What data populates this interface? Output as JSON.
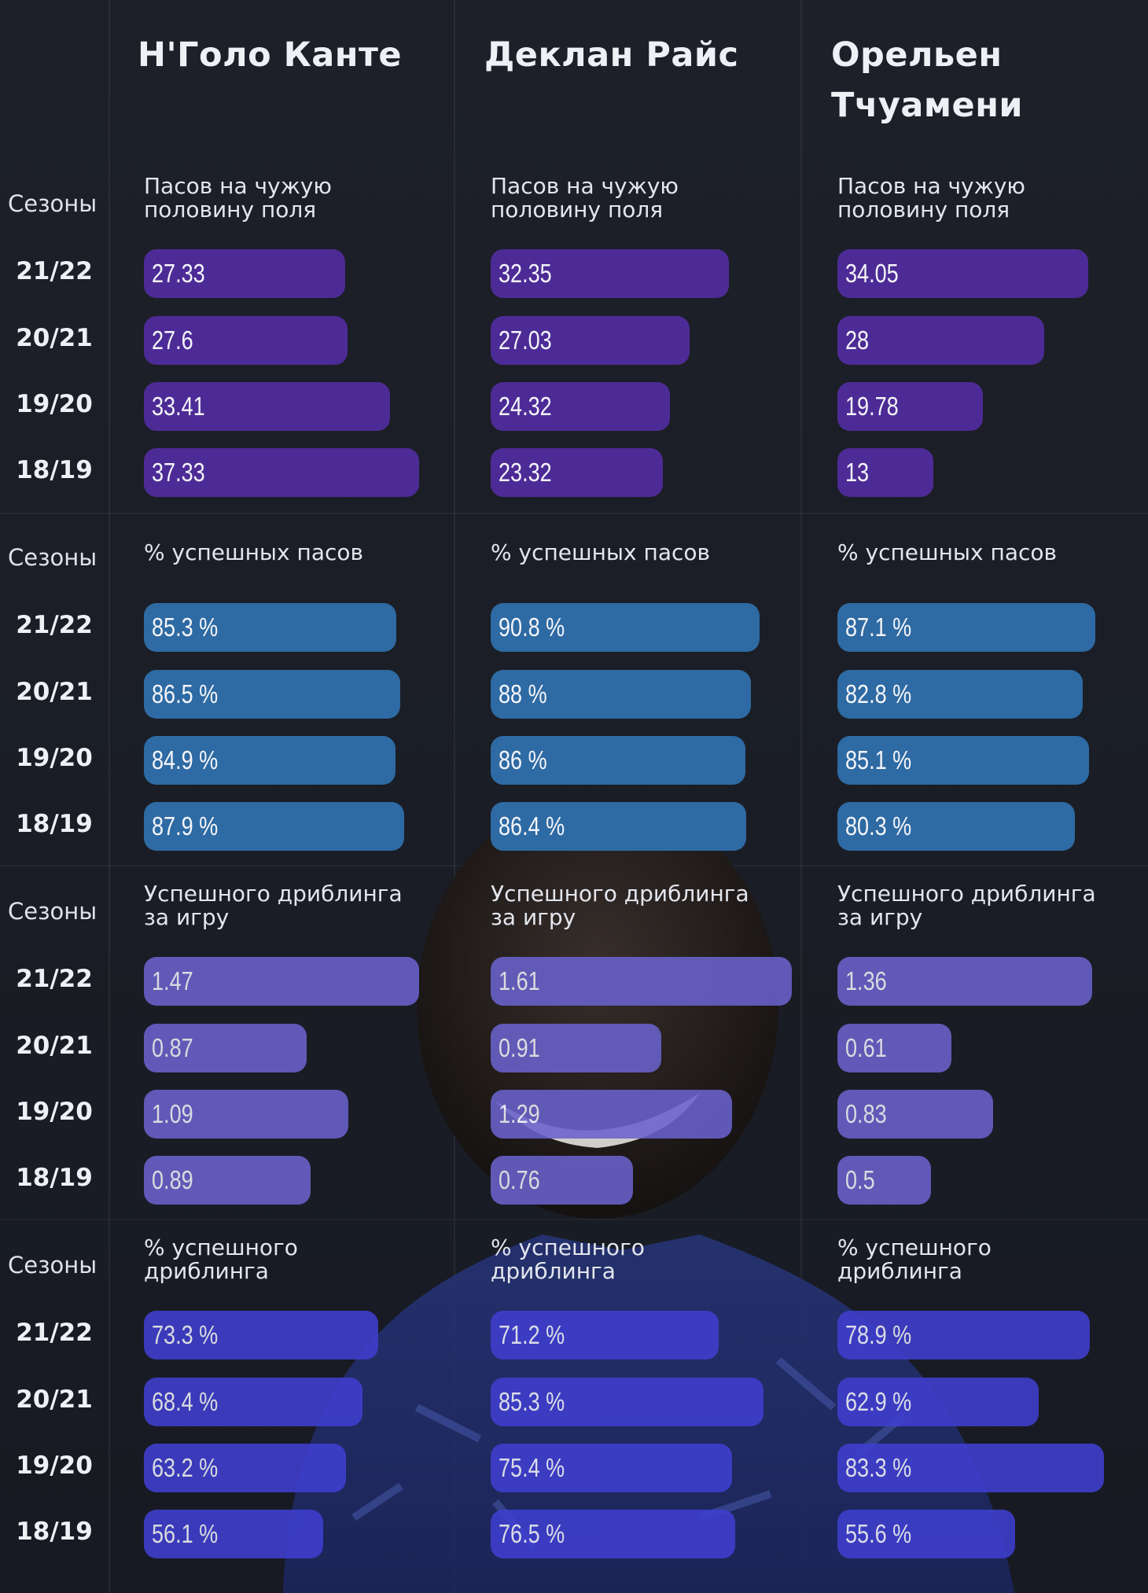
{
  "colors": {
    "passes_forward": "#4d2b96",
    "pass_accuracy": "#2e6aa3",
    "dribbles_per_game": "#6a62cc",
    "dribble_success": "#3f3fcf"
  },
  "players": [
    "Н'Голо Канте",
    "Деклан Райс",
    "Орельен\nТчуамени"
  ],
  "season_column_title": "Сезоны",
  "seasons": [
    "21/22",
    "20/21",
    "19/20",
    "18/19"
  ],
  "chart_data": [
    {
      "type": "bar",
      "metric": "passes_forward",
      "title": "Пасов на чужую\nполовину поля",
      "categories": [
        "21/22",
        "20/21",
        "19/20",
        "18/19"
      ],
      "series": [
        {
          "name": "Н'Голо Канте",
          "values": [
            27.33,
            27.6,
            33.41,
            37.33
          ],
          "labels": [
            "27.33",
            "27.6",
            "33.41",
            "37.33"
          ]
        },
        {
          "name": "Деклан Райс",
          "values": [
            32.35,
            27.03,
            24.32,
            23.32
          ],
          "labels": [
            "32.35",
            "27.03",
            "24.32",
            "23.32"
          ]
        },
        {
          "name": "Орельен Тчуамени",
          "values": [
            34.05,
            28,
            19.78,
            13
          ],
          "labels": [
            "34.05",
            "28",
            "19.78",
            "13"
          ]
        }
      ]
    },
    {
      "type": "bar",
      "metric": "pass_accuracy",
      "title": "% успешных пасов",
      "categories": [
        "21/22",
        "20/21",
        "19/20",
        "18/19"
      ],
      "series": [
        {
          "name": "Н'Голо Канте",
          "values": [
            85.3,
            86.5,
            84.9,
            87.9
          ],
          "labels": [
            "85.3 %",
            "86.5 %",
            "84.9 %",
            "87.9 %"
          ]
        },
        {
          "name": "Деклан Райс",
          "values": [
            90.8,
            88,
            86,
            86.4
          ],
          "labels": [
            "90.8 %",
            "88 %",
            "86 %",
            "86.4 %"
          ]
        },
        {
          "name": "Орельен Тчуамени",
          "values": [
            87.1,
            82.8,
            85.1,
            80.3
          ],
          "labels": [
            "87.1 %",
            "82.8 %",
            "85.1 %",
            "80.3 %"
          ]
        }
      ]
    },
    {
      "type": "bar",
      "metric": "dribbles_per_game",
      "title": "Успешного дриблинга\nза игру",
      "categories": [
        "21/22",
        "20/21",
        "19/20",
        "18/19"
      ],
      "series": [
        {
          "name": "Н'Голо Канте",
          "values": [
            1.47,
            0.87,
            1.09,
            0.89
          ],
          "labels": [
            "1.47",
            "0.87",
            "1.09",
            "0.89"
          ]
        },
        {
          "name": "Деклан Райс",
          "values": [
            1.61,
            0.91,
            1.29,
            0.76
          ],
          "labels": [
            "1.61",
            "0.91",
            "1.29",
            "0.76"
          ]
        },
        {
          "name": "Орельен Тчуамени",
          "values": [
            1.36,
            0.61,
            0.83,
            0.5
          ],
          "labels": [
            "1.36",
            "0.61",
            "0.83",
            "0.5"
          ]
        }
      ]
    },
    {
      "type": "bar",
      "metric": "dribble_success",
      "title": "% успешного\nдриблинга",
      "categories": [
        "21/22",
        "20/21",
        "19/20",
        "18/19"
      ],
      "series": [
        {
          "name": "Н'Голо Канте",
          "values": [
            73.3,
            68.4,
            63.2,
            56.1
          ],
          "labels": [
            "73.3 %",
            "68.4 %",
            "63.2 %",
            "56.1 %"
          ]
        },
        {
          "name": "Деклан Райс",
          "values": [
            71.2,
            85.3,
            75.4,
            76.5
          ],
          "labels": [
            "71.2 %",
            "85.3 %",
            "75.4 %",
            "76.5 %"
          ]
        },
        {
          "name": "Орельен Тчуамени",
          "values": [
            78.9,
            62.9,
            83.3,
            55.6
          ],
          "labels": [
            "78.9 %",
            "62.9 %",
            "83.3 %",
            "55.6 %"
          ]
        }
      ]
    }
  ]
}
